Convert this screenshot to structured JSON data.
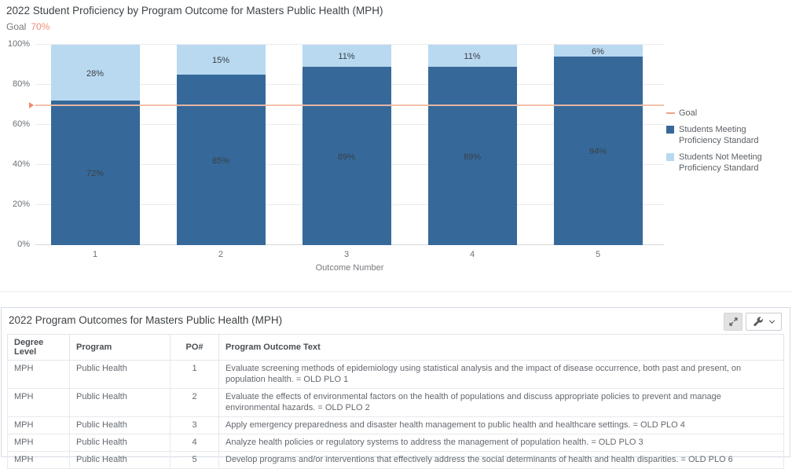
{
  "chart": {
    "title": "2022 Student Proficiency by Program Outcome for Masters Public Health (MPH)",
    "goal": {
      "label": "Goal",
      "value_text": "70%"
    },
    "xlabel": "Outcome Number",
    "legend": {
      "goal_label": "Goal",
      "meeting_label": "Students Meeting Proficiency Standard",
      "not_meeting_label": "Students Not Meeting Proficiency Standard"
    },
    "colors": {
      "meeting": "#36699a",
      "not_meeting": "#b9d9f0",
      "goal_line": "#f2bca4",
      "goal_marker": "#ec8b6f",
      "goal_value_text": "#ef8f79"
    }
  },
  "chart_data": {
    "type": "bar",
    "stacked": true,
    "title": "2022 Student Proficiency by Program Outcome for Masters Public Health (MPH)",
    "categories": [
      "1",
      "2",
      "3",
      "4",
      "5"
    ],
    "series": [
      {
        "name": "Students Meeting Proficiency Standard",
        "color": "#36699a",
        "values": [
          72,
          85,
          89,
          89,
          94
        ],
        "labels": [
          "72%",
          "85%",
          "89%",
          "89%",
          "94%"
        ]
      },
      {
        "name": "Students Not Meeting Proficiency Standard",
        "color": "#b9d9f0",
        "values": [
          28,
          15,
          11,
          11,
          6
        ],
        "labels": [
          "28%",
          "15%",
          "11%",
          "11%",
          "6%"
        ]
      }
    ],
    "goal_line": {
      "label": "Goal",
      "value": 70
    },
    "xlabel": "Outcome Number",
    "ylabel": "",
    "ylim": [
      0,
      100
    ],
    "yticks": [
      0,
      20,
      40,
      60,
      80,
      100
    ],
    "ytick_labels": [
      "0%",
      "20%",
      "40%",
      "60%",
      "80%",
      "100%"
    ],
    "legend_position": "right",
    "grid": "horizontal"
  },
  "table": {
    "title": "2022 Program Outcomes for Masters Public Health (MPH)",
    "toolbar_icons": [
      "expand-icon",
      "wrench-icon",
      "chevron-down-icon"
    ],
    "columns": [
      "Degree Level",
      "Program",
      "PO#",
      "Program Outcome Text"
    ],
    "rows": [
      [
        "MPH",
        "Public Health",
        "1",
        "Evaluate screening methods of epidemiology using statistical analysis and the impact of disease occurrence, both past and present, on population health.  = OLD PLO 1"
      ],
      [
        "MPH",
        "Public Health",
        "2",
        "Evaluate the effects of environmental factors on the health of populations and discuss appropriate policies to prevent and manage environmental hazards.  = OLD PLO 2"
      ],
      [
        "MPH",
        "Public Health",
        "3",
        "Apply emergency preparedness and disaster health management to public health and healthcare settings.  = OLD PLO 4"
      ],
      [
        "MPH",
        "Public Health",
        "4",
        "Analyze health policies or regulatory systems to address the management of population health.   = OLD PLO 3"
      ],
      [
        "MPH",
        "Public Health",
        "5",
        "Develop programs and/or interventions that effectively address the social determinants of health and health disparities.  = OLD PLO 6"
      ]
    ]
  }
}
